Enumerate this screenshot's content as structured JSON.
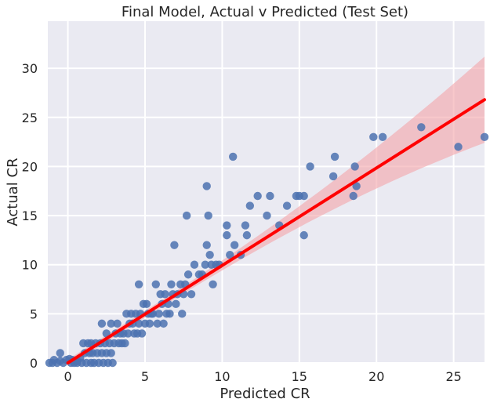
{
  "chart_data": {
    "type": "scatter",
    "title": "Final Model, Actual v Predicted (Test Set)",
    "xlabel": "Predicted CR",
    "ylabel": "Actual CR",
    "xlim": [
      -1.3,
      27
    ],
    "ylim": [
      0,
      34.8
    ],
    "xticks": [
      0,
      5,
      10,
      15,
      20,
      25
    ],
    "yticks": [
      0,
      5,
      10,
      15,
      20,
      25,
      30
    ],
    "grid": true,
    "background_color": "#eaeaf2",
    "point_color": "#4c72b0",
    "fit_color": "#ff0000",
    "band_color": "#f4a3a8",
    "series": [
      {
        "type": "scatter",
        "points": [
          [
            -1.2,
            0
          ],
          [
            -1.0,
            0
          ],
          [
            -0.9,
            0.3
          ],
          [
            -0.7,
            0
          ],
          [
            -0.5,
            0.2
          ],
          [
            -0.3,
            0
          ],
          [
            -0.1,
            0.3
          ],
          [
            0.1,
            0.4
          ],
          [
            0.2,
            0
          ],
          [
            0.3,
            0.3
          ],
          [
            0.4,
            0
          ],
          [
            -0.5,
            1
          ],
          [
            0.6,
            0.2
          ],
          [
            0.6,
            0
          ],
          [
            0.8,
            0.5
          ],
          [
            0.9,
            0
          ],
          [
            1.0,
            2
          ],
          [
            1.1,
            1
          ],
          [
            1.2,
            0
          ],
          [
            1.3,
            2
          ],
          [
            1.4,
            1
          ],
          [
            1.5,
            0
          ],
          [
            1.5,
            2
          ],
          [
            1.6,
            1
          ],
          [
            1.7,
            0
          ],
          [
            1.8,
            2
          ],
          [
            1.9,
            1
          ],
          [
            2.0,
            0
          ],
          [
            2.1,
            2
          ],
          [
            2.2,
            4
          ],
          [
            2.2,
            1
          ],
          [
            2.3,
            0
          ],
          [
            2.4,
            2
          ],
          [
            2.5,
            3
          ],
          [
            2.5,
            1
          ],
          [
            2.6,
            0
          ],
          [
            2.7,
            2
          ],
          [
            2.8,
            4
          ],
          [
            2.8,
            1
          ],
          [
            2.9,
            0
          ],
          [
            3.0,
            2
          ],
          [
            3.1,
            3
          ],
          [
            3.2,
            4
          ],
          [
            3.3,
            2
          ],
          [
            3.4,
            3
          ],
          [
            3.5,
            2
          ],
          [
            3.6,
            3
          ],
          [
            3.7,
            2
          ],
          [
            3.8,
            5
          ],
          [
            3.9,
            3
          ],
          [
            4.0,
            4
          ],
          [
            4.1,
            5
          ],
          [
            4.2,
            4
          ],
          [
            4.3,
            3
          ],
          [
            4.4,
            5
          ],
          [
            4.5,
            3
          ],
          [
            4.6,
            8
          ],
          [
            4.6,
            4
          ],
          [
            4.7,
            5
          ],
          [
            4.8,
            3
          ],
          [
            4.9,
            6
          ],
          [
            5.0,
            4
          ],
          [
            5.1,
            6
          ],
          [
            5.2,
            5
          ],
          [
            5.3,
            4
          ],
          [
            5.4,
            5
          ],
          [
            5.5,
            5
          ],
          [
            5.7,
            8
          ],
          [
            5.8,
            4
          ],
          [
            5.9,
            5
          ],
          [
            6.0,
            7
          ],
          [
            6.1,
            6
          ],
          [
            6.2,
            4
          ],
          [
            6.3,
            7
          ],
          [
            6.4,
            5
          ],
          [
            6.5,
            6
          ],
          [
            6.6,
            5
          ],
          [
            6.7,
            8
          ],
          [
            6.8,
            7
          ],
          [
            6.9,
            12
          ],
          [
            7.0,
            6
          ],
          [
            7.1,
            7
          ],
          [
            7.3,
            8
          ],
          [
            7.4,
            5
          ],
          [
            7.5,
            7
          ],
          [
            7.6,
            8
          ],
          [
            7.7,
            15
          ],
          [
            7.8,
            9
          ],
          [
            8.0,
            7
          ],
          [
            8.2,
            10
          ],
          [
            8.5,
            9
          ],
          [
            8.7,
            9
          ],
          [
            8.9,
            10
          ],
          [
            9.0,
            18
          ],
          [
            9.0,
            12
          ],
          [
            9.1,
            15
          ],
          [
            9.2,
            11
          ],
          [
            9.3,
            10
          ],
          [
            9.4,
            8
          ],
          [
            9.6,
            10
          ],
          [
            9.8,
            10
          ],
          [
            10.3,
            14
          ],
          [
            10.3,
            13
          ],
          [
            10.5,
            11
          ],
          [
            10.7,
            21
          ],
          [
            10.8,
            12
          ],
          [
            11.2,
            11
          ],
          [
            11.5,
            14
          ],
          [
            11.6,
            13
          ],
          [
            11.8,
            16
          ],
          [
            12.3,
            17
          ],
          [
            12.9,
            15
          ],
          [
            13.1,
            17
          ],
          [
            13.7,
            14
          ],
          [
            14.2,
            16
          ],
          [
            14.8,
            17
          ],
          [
            15.0,
            17
          ],
          [
            15.3,
            17
          ],
          [
            15.3,
            13
          ],
          [
            15.7,
            20
          ],
          [
            17.2,
            19
          ],
          [
            17.3,
            21
          ],
          [
            18.5,
            17
          ],
          [
            18.6,
            20
          ],
          [
            18.7,
            18
          ],
          [
            19.8,
            23
          ],
          [
            20.4,
            23
          ],
          [
            22.9,
            24
          ],
          [
            25.3,
            22
          ],
          [
            27.0,
            23
          ]
        ]
      },
      {
        "type": "line",
        "name": "",
        "x": [
          0,
          27
        ],
        "y": [
          0,
          26.8
        ]
      }
    ]
  }
}
